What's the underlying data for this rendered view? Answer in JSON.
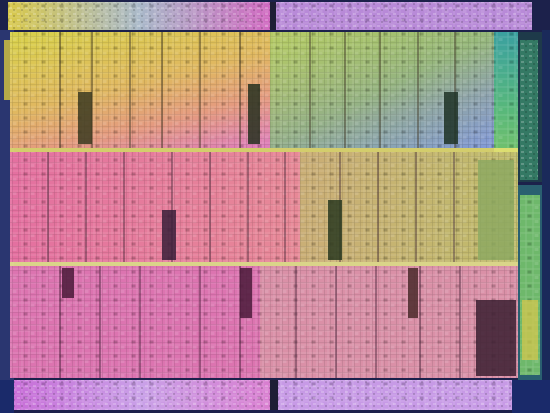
{
  "image": {
    "subject": "die-shot",
    "colors": {
      "background": "#0a0a14",
      "yellow": "#d8cf4e",
      "orange": "#e2a257",
      "magenta": "#d86ea0",
      "pink": "#e28ad0",
      "green": "#6fae5c",
      "teal": "#4aa28a",
      "purple": "#8a6ad0",
      "blue": "#4a7ad8",
      "dark": "#2a2540"
    }
  }
}
